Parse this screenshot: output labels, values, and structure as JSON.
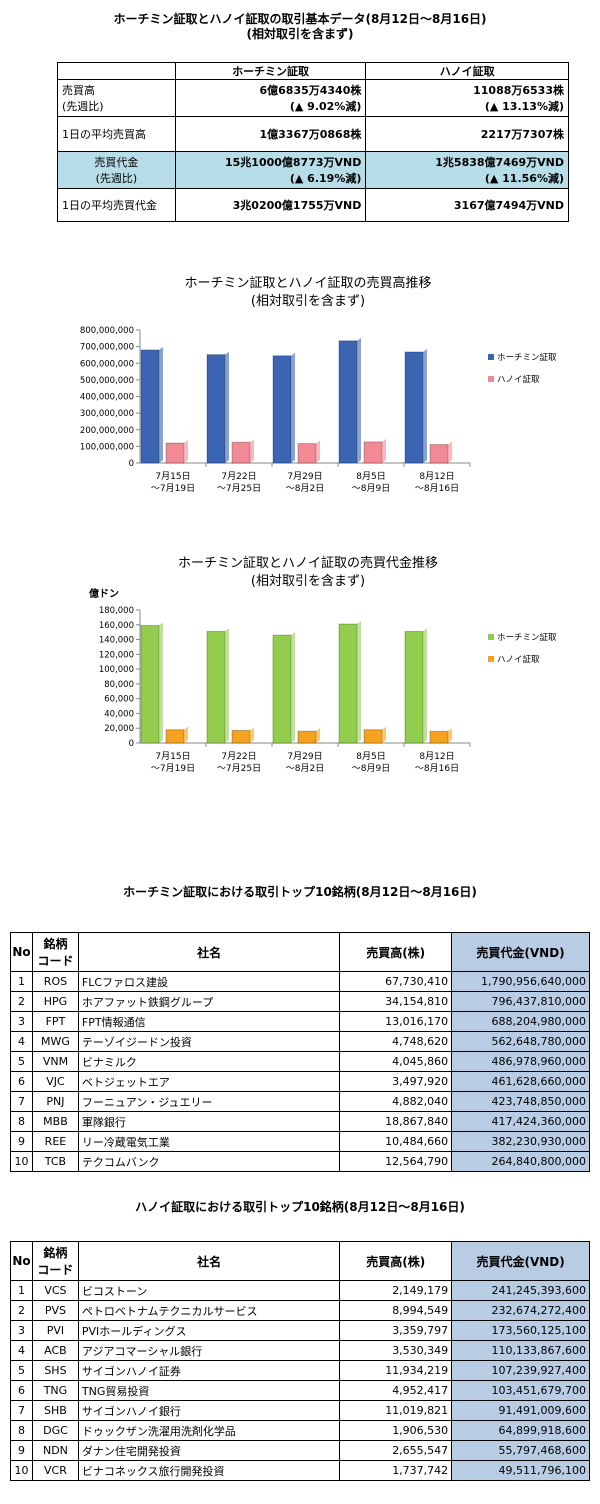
{
  "summary": {
    "title1": "ホーチミン証取とハノイ証取の取引基本データ(8月12日〜8月16日)",
    "title2": "(相対取引を含まず)",
    "col_hcm": "ホーチミン証取",
    "col_hn": "ハノイ証取",
    "rows": [
      {
        "label1": "売買高",
        "label2": "(先週比)",
        "hcm1": "6億6835万4340株",
        "hcm2": "(▲ 9.02%減)",
        "hn1": "11088万6533株",
        "hn2": "(▲ 13.13%減)"
      },
      {
        "label1": "1日の平均売買高",
        "hcm1": "1億3367万0868株",
        "hn1": "2217万7307株"
      },
      {
        "label1": "売買代金",
        "label2": "(先週比)",
        "hcm1": "15兆1000億8773万VND",
        "hcm2": "(▲ 6.19%減)",
        "hn1": "1兆5838億7469万VND",
        "hn2": "(▲ 11.56%減)"
      },
      {
        "label1": "1日の平均売買代金",
        "hcm1": "3兆0200億1755万VND",
        "hn1": "3167億7494万VND"
      }
    ]
  },
  "chart_data": [
    {
      "type": "bar",
      "title": "ホーチミン証取とハノイ証取の売買高推移",
      "subtitle": "(相対取引を含まず)",
      "ylabel": "",
      "ylim": [
        0,
        800000000
      ],
      "yticks": [
        "0",
        "100,000,000",
        "200,000,000",
        "300,000,000",
        "400,000,000",
        "500,000,000",
        "600,000,000",
        "700,000,000",
        "800,000,000"
      ],
      "categories": [
        [
          "7月15日",
          "〜7月19日"
        ],
        [
          "7月22日",
          "〜7月25日"
        ],
        [
          "7月29日",
          "〜8月2日"
        ],
        [
          "8月5日",
          "〜8月9日"
        ],
        [
          "8月12日",
          "〜8月16日"
        ]
      ],
      "series": [
        {
          "name": "ホーチミン証取",
          "color": "#3b64b3",
          "values": [
            680000000,
            652000000,
            645000000,
            735000000,
            668000000
          ]
        },
        {
          "name": "ハノイ証取",
          "color": "#f28a96",
          "values": [
            120000000,
            125000000,
            117000000,
            127000000,
            111000000
          ]
        }
      ],
      "legend": "right"
    },
    {
      "type": "bar",
      "title": "ホーチミン証取とハノイ証取の売買代金推移",
      "subtitle": "(相対取引を含まず)",
      "ylabel": "億ドン",
      "ylim": [
        0,
        180000
      ],
      "yticks": [
        "0",
        "20,000",
        "40,000",
        "60,000",
        "80,000",
        "100,000",
        "120,000",
        "140,000",
        "160,000",
        "180,000"
      ],
      "categories": [
        [
          "7月15日",
          "〜7月19日"
        ],
        [
          "7月22日",
          "〜7月25日"
        ],
        [
          "7月29日",
          "〜8月2日"
        ],
        [
          "8月5日",
          "〜8月9日"
        ],
        [
          "8月12日",
          "〜8月16日"
        ]
      ],
      "series": [
        {
          "name": "ホーチミン証取",
          "color": "#92cd4e",
          "values": [
            159000,
            151000,
            146000,
            161000,
            151000
          ]
        },
        {
          "name": "ハノイ証取",
          "color": "#f4a21f",
          "values": [
            18000,
            17000,
            16000,
            18000,
            15800
          ]
        }
      ],
      "legend": "right"
    }
  ],
  "hcm_top": {
    "title": "ホーチミン証取における取引トップ10銘柄(8月12日〜8月16日)",
    "headers": {
      "no": "No",
      "code1": "銘柄",
      "code2": "コード",
      "name": "社名",
      "volume": "売買高(株)",
      "value": "売買代金(VND)"
    },
    "rows": [
      [
        "1",
        "ROS",
        "FLCファロス建設",
        "67,730,410",
        "1,790,956,640,000"
      ],
      [
        "2",
        "HPG",
        "ホアファット鉄鋼グループ",
        "34,154,810",
        "796,437,810,000"
      ],
      [
        "3",
        "FPT",
        "FPT情報通信",
        "13,016,170",
        "688,204,980,000"
      ],
      [
        "4",
        "MWG",
        "テーゾイジードン投資",
        "4,748,620",
        "562,648,780,000"
      ],
      [
        "5",
        "VNM",
        "ビナミルク",
        "4,045,860",
        "486,978,960,000"
      ],
      [
        "6",
        "VJC",
        "ベトジェットエア",
        "3,497,920",
        "461,628,660,000"
      ],
      [
        "7",
        "PNJ",
        "フーニュアン・ジュエリー",
        "4,882,040",
        "423,748,850,000"
      ],
      [
        "8",
        "MBB",
        "軍隊銀行",
        "18,867,840",
        "417,424,360,000"
      ],
      [
        "9",
        "REE",
        "リー冷蔵電気工業",
        "10,484,660",
        "382,230,930,000"
      ],
      [
        "10",
        "TCB",
        "テクコムバンク",
        "12,564,790",
        "264,840,800,000"
      ]
    ]
  },
  "hn_top": {
    "title": "ハノイ証取における取引トップ10銘柄(8月12日〜8月16日)",
    "headers": {
      "no": "No",
      "code1": "銘柄",
      "code2": "コード",
      "name": "社名",
      "volume": "売買高(株)",
      "value": "売買代金(VND)"
    },
    "rows": [
      [
        "1",
        "VCS",
        "ビコストーン",
        "2,149,179",
        "241,245,393,600"
      ],
      [
        "2",
        "PVS",
        "ペトロベトナムテクニカルサービス",
        "8,994,549",
        "232,674,272,400"
      ],
      [
        "3",
        "PVI",
        "PVIホールディングス",
        "3,359,797",
        "173,560,125,100"
      ],
      [
        "4",
        "ACB",
        "アジアコマーシャル銀行",
        "3,530,349",
        "110,133,867,600"
      ],
      [
        "5",
        "SHS",
        "サイゴンハノイ証券",
        "11,934,219",
        "107,239,927,400"
      ],
      [
        "6",
        "TNG",
        "TNG貿易投資",
        "4,952,417",
        "103,451,679,700"
      ],
      [
        "7",
        "SHB",
        "サイゴンハノイ銀行",
        "11,019,821",
        "91,491,009,600"
      ],
      [
        "8",
        "DGC",
        "ドゥックザン洗濯用洗剤化学品",
        "1,906,530",
        "64,899,918,600"
      ],
      [
        "9",
        "NDN",
        "ダナン住宅開発投資",
        "2,655,547",
        "55,797,468,600"
      ],
      [
        "10",
        "VCR",
        "ビナコネックス旅行開発投資",
        "1,737,742",
        "49,511,796,100"
      ]
    ]
  }
}
